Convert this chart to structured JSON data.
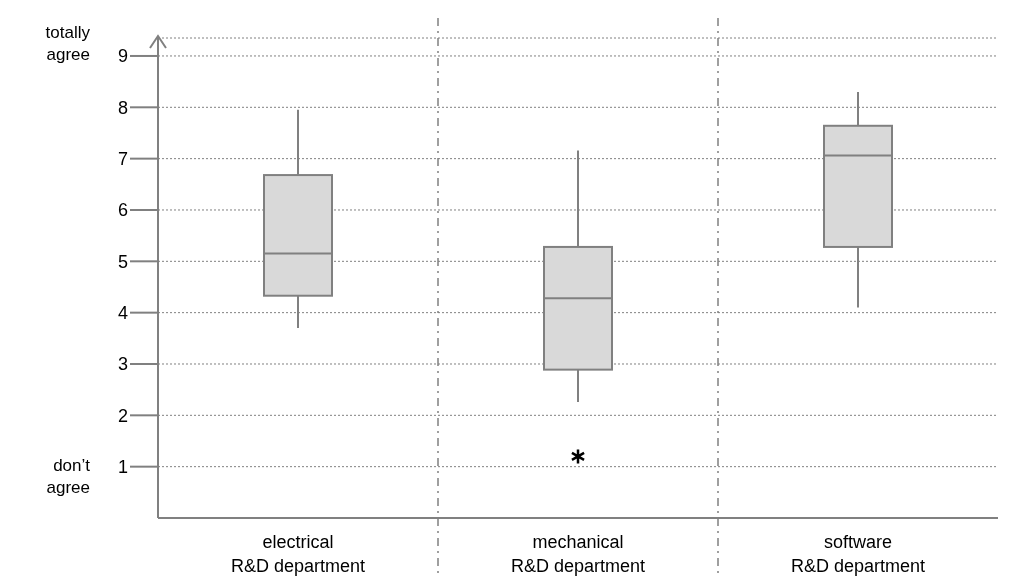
{
  "chart_data": {
    "type": "box",
    "categories": [
      "electrical\nR&D department",
      "mechanical\nR&D department",
      "software\nR&D department"
    ],
    "series": [
      {
        "color": "#d9d9d9",
        "boxes": [
          {
            "low": 3.7,
            "q1": 4.33,
            "median": 5.15,
            "q3": 6.68,
            "high": 7.95
          },
          {
            "low": 2.26,
            "q1": 2.89,
            "median": 4.28,
            "q3": 5.28,
            "high": 7.16,
            "outliers": [
              1.2
            ]
          },
          {
            "low": 4.1,
            "q1": 5.28,
            "median": 7.06,
            "q3": 7.64,
            "high": 8.3
          }
        ]
      }
    ],
    "ylim": [
      0,
      9.35
    ],
    "yticks": [
      1,
      2,
      3,
      4,
      5,
      6,
      7,
      8,
      9
    ],
    "grid": "y",
    "annotations": [
      "totally\nagree",
      "don’t\nagree"
    ]
  }
}
